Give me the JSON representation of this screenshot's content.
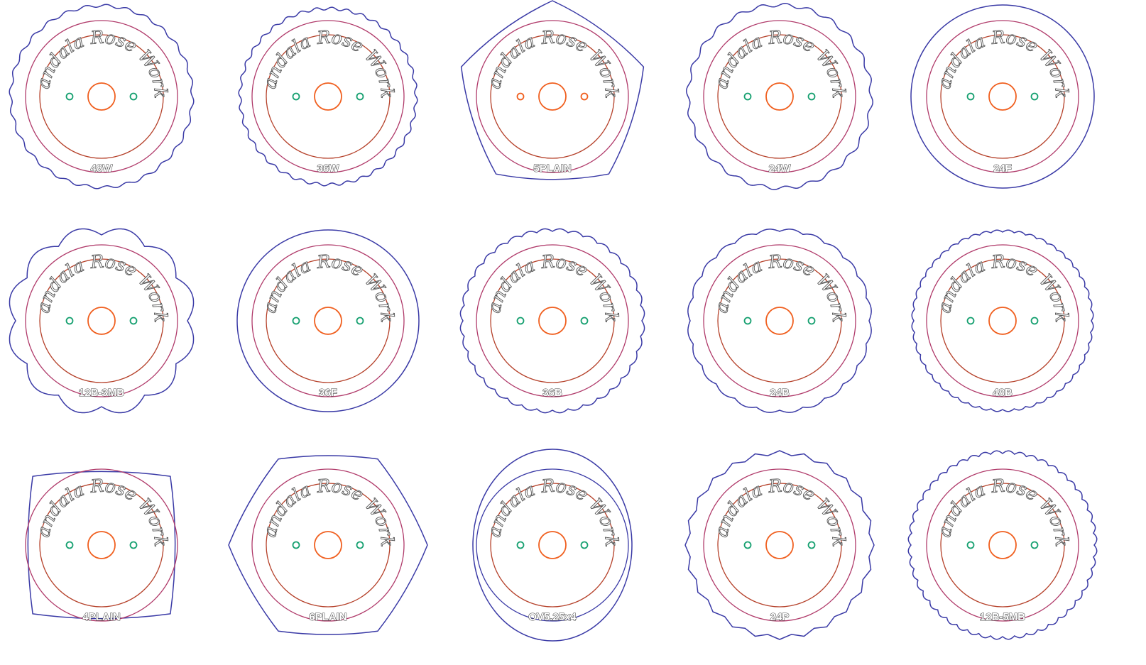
{
  "brand_text": "Mandala Rose Works",
  "colors": {
    "outer": "#3a3aa6",
    "middle": "#b03a6a",
    "inner": "#b5412a",
    "hub": "#f06020",
    "hole": "#16a070",
    "hole_orange": "#f06020",
    "label_stroke": "#444444"
  },
  "templates": [
    {
      "label": "48W",
      "shape": "wavy"
    },
    {
      "label": "36W",
      "shape": "wavy"
    },
    {
      "label": "5PLAIN",
      "shape": "pentagon"
    },
    {
      "label": "24W",
      "shape": "wavy"
    },
    {
      "label": "24F",
      "shape": "circle"
    },
    {
      "label": "12B-3MB",
      "shape": "scallop"
    },
    {
      "label": "36F",
      "shape": "circle"
    },
    {
      "label": "36B",
      "shape": "scallop"
    },
    {
      "label": "24B",
      "shape": "scallop"
    },
    {
      "label": "48B",
      "shape": "scallop"
    },
    {
      "label": "4PLAIN",
      "shape": "square"
    },
    {
      "label": "6PLAIN",
      "shape": "hexagon"
    },
    {
      "label": "OV5.25x4",
      "shape": "oval"
    },
    {
      "label": "24P",
      "shape": "points"
    },
    {
      "label": "12B-5MB",
      "shape": "scallop"
    }
  ]
}
